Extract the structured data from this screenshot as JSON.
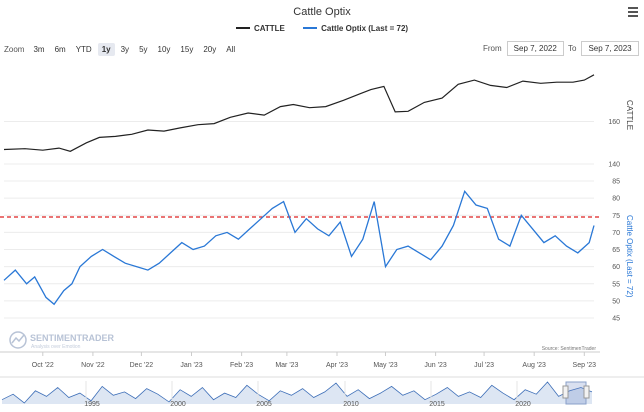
{
  "title": "Cattle Optix",
  "legend": [
    {
      "name": "CATTLE",
      "color": "#222222"
    },
    {
      "name": "Cattle Optix (Last = 72)",
      "color": "#2a78d6"
    }
  ],
  "zoom": {
    "label": "Zoom",
    "buttons": [
      "3m",
      "6m",
      "YTD",
      "1y",
      "3y",
      "5y",
      "10y",
      "15y",
      "20y",
      "All"
    ],
    "active": "1y"
  },
  "range": {
    "from_label": "From",
    "from": "Sep 7, 2022",
    "to_label": "To",
    "to": "Sep 7, 2023"
  },
  "watermark": {
    "name": "SENTIMENTRADER",
    "tagline": "Analysis over Emotion"
  },
  "credit": "Source: SentimenTrader",
  "colors": {
    "cattle": "#222222",
    "optix": "#2a78d6",
    "threshold": "#dd2222",
    "navigator": "#3e6fb8"
  },
  "chart_data": [
    {
      "type": "line",
      "name": "CATTLE",
      "axis_label": "CATTLE",
      "ylim": [
        140,
        188
      ],
      "yticks": [
        140,
        160
      ],
      "x": [
        "2022-09-07",
        "2022-09-20",
        "2022-10-01",
        "2022-10-11",
        "2022-10-18",
        "2022-10-28",
        "2022-11-05",
        "2022-11-15",
        "2022-11-25",
        "2022-12-05",
        "2022-12-15",
        "2022-12-25",
        "2023-01-05",
        "2023-01-15",
        "2023-01-25",
        "2023-02-05",
        "2023-02-15",
        "2023-02-25",
        "2023-03-05",
        "2023-03-15",
        "2023-03-25",
        "2023-04-05",
        "2023-04-15",
        "2023-04-22",
        "2023-04-30",
        "2023-05-07",
        "2023-05-15",
        "2023-05-25",
        "2023-06-05",
        "2023-06-15",
        "2023-06-25",
        "2023-07-05",
        "2023-07-15",
        "2023-07-25",
        "2023-08-05",
        "2023-08-15",
        "2023-08-25",
        "2023-09-01",
        "2023-09-07"
      ],
      "y": [
        146.8,
        147.2,
        146.5,
        147.5,
        146.0,
        150.0,
        152.5,
        153.0,
        154.0,
        156.0,
        155.5,
        157.0,
        158.5,
        159.0,
        162.0,
        164.0,
        163.0,
        167.0,
        168.0,
        166.5,
        167.0,
        170.0,
        173.0,
        175.0,
        176.5,
        164.5,
        164.8,
        169.0,
        171.0,
        177.5,
        179.5,
        177.0,
        176.0,
        179.0,
        178.0,
        178.5,
        178.5,
        179.5,
        182.0
      ]
    },
    {
      "type": "line",
      "name": "Cattle Optix (Last = 72)",
      "axis_label": "Cattle Optix (Last = 72)",
      "ylim": [
        45,
        85
      ],
      "yticks": [
        45,
        50,
        55,
        60,
        65,
        70,
        75,
        80,
        85
      ],
      "threshold": 74.5,
      "x": [
        "2022-09-07",
        "2022-09-14",
        "2022-09-21",
        "2022-09-26",
        "2022-10-03",
        "2022-10-08",
        "2022-10-14",
        "2022-10-19",
        "2022-10-24",
        "2022-10-31",
        "2022-11-07",
        "2022-11-14",
        "2022-11-21",
        "2022-11-28",
        "2022-12-05",
        "2022-12-12",
        "2022-12-19",
        "2022-12-26",
        "2023-01-02",
        "2023-01-09",
        "2023-01-16",
        "2023-01-23",
        "2023-01-30",
        "2023-02-06",
        "2023-02-13",
        "2023-02-20",
        "2023-02-27",
        "2023-03-06",
        "2023-03-13",
        "2023-03-20",
        "2023-03-27",
        "2023-04-03",
        "2023-04-10",
        "2023-04-17",
        "2023-04-24",
        "2023-05-01",
        "2023-05-08",
        "2023-05-15",
        "2023-05-22",
        "2023-05-29",
        "2023-06-05",
        "2023-06-12",
        "2023-06-19",
        "2023-06-26",
        "2023-07-03",
        "2023-07-10",
        "2023-07-17",
        "2023-07-24",
        "2023-07-31",
        "2023-08-07",
        "2023-08-14",
        "2023-08-21",
        "2023-08-28",
        "2023-09-04",
        "2023-09-07"
      ],
      "y": [
        56,
        59,
        55,
        57,
        51,
        49,
        53,
        55,
        60,
        63,
        65,
        63,
        61,
        60,
        59,
        61,
        64,
        67,
        65,
        66,
        69,
        70,
        68,
        71,
        74,
        77,
        79,
        70,
        74,
        71,
        69,
        73,
        63,
        68,
        79,
        60,
        65,
        66,
        64,
        62,
        66,
        72,
        82,
        78,
        77,
        68,
        66,
        75,
        71,
        67,
        69,
        66,
        64,
        67,
        72
      ]
    }
  ],
  "navigator": {
    "tick_labels": [
      "1995",
      "2000",
      "2005",
      "2010",
      "2015",
      "2020"
    ],
    "series": [
      55,
      60,
      52,
      63,
      58,
      66,
      57,
      61,
      54,
      67,
      59,
      62,
      56,
      65,
      60,
      53,
      64,
      58,
      66,
      55,
      61,
      57,
      68,
      60,
      54,
      63,
      59,
      65,
      57,
      62,
      70,
      58,
      64,
      56,
      61,
      67,
      59,
      63,
      55,
      60,
      66,
      58,
      62,
      57,
      68,
      61,
      55,
      64,
      60,
      71,
      58,
      63,
      66,
      62
    ]
  }
}
